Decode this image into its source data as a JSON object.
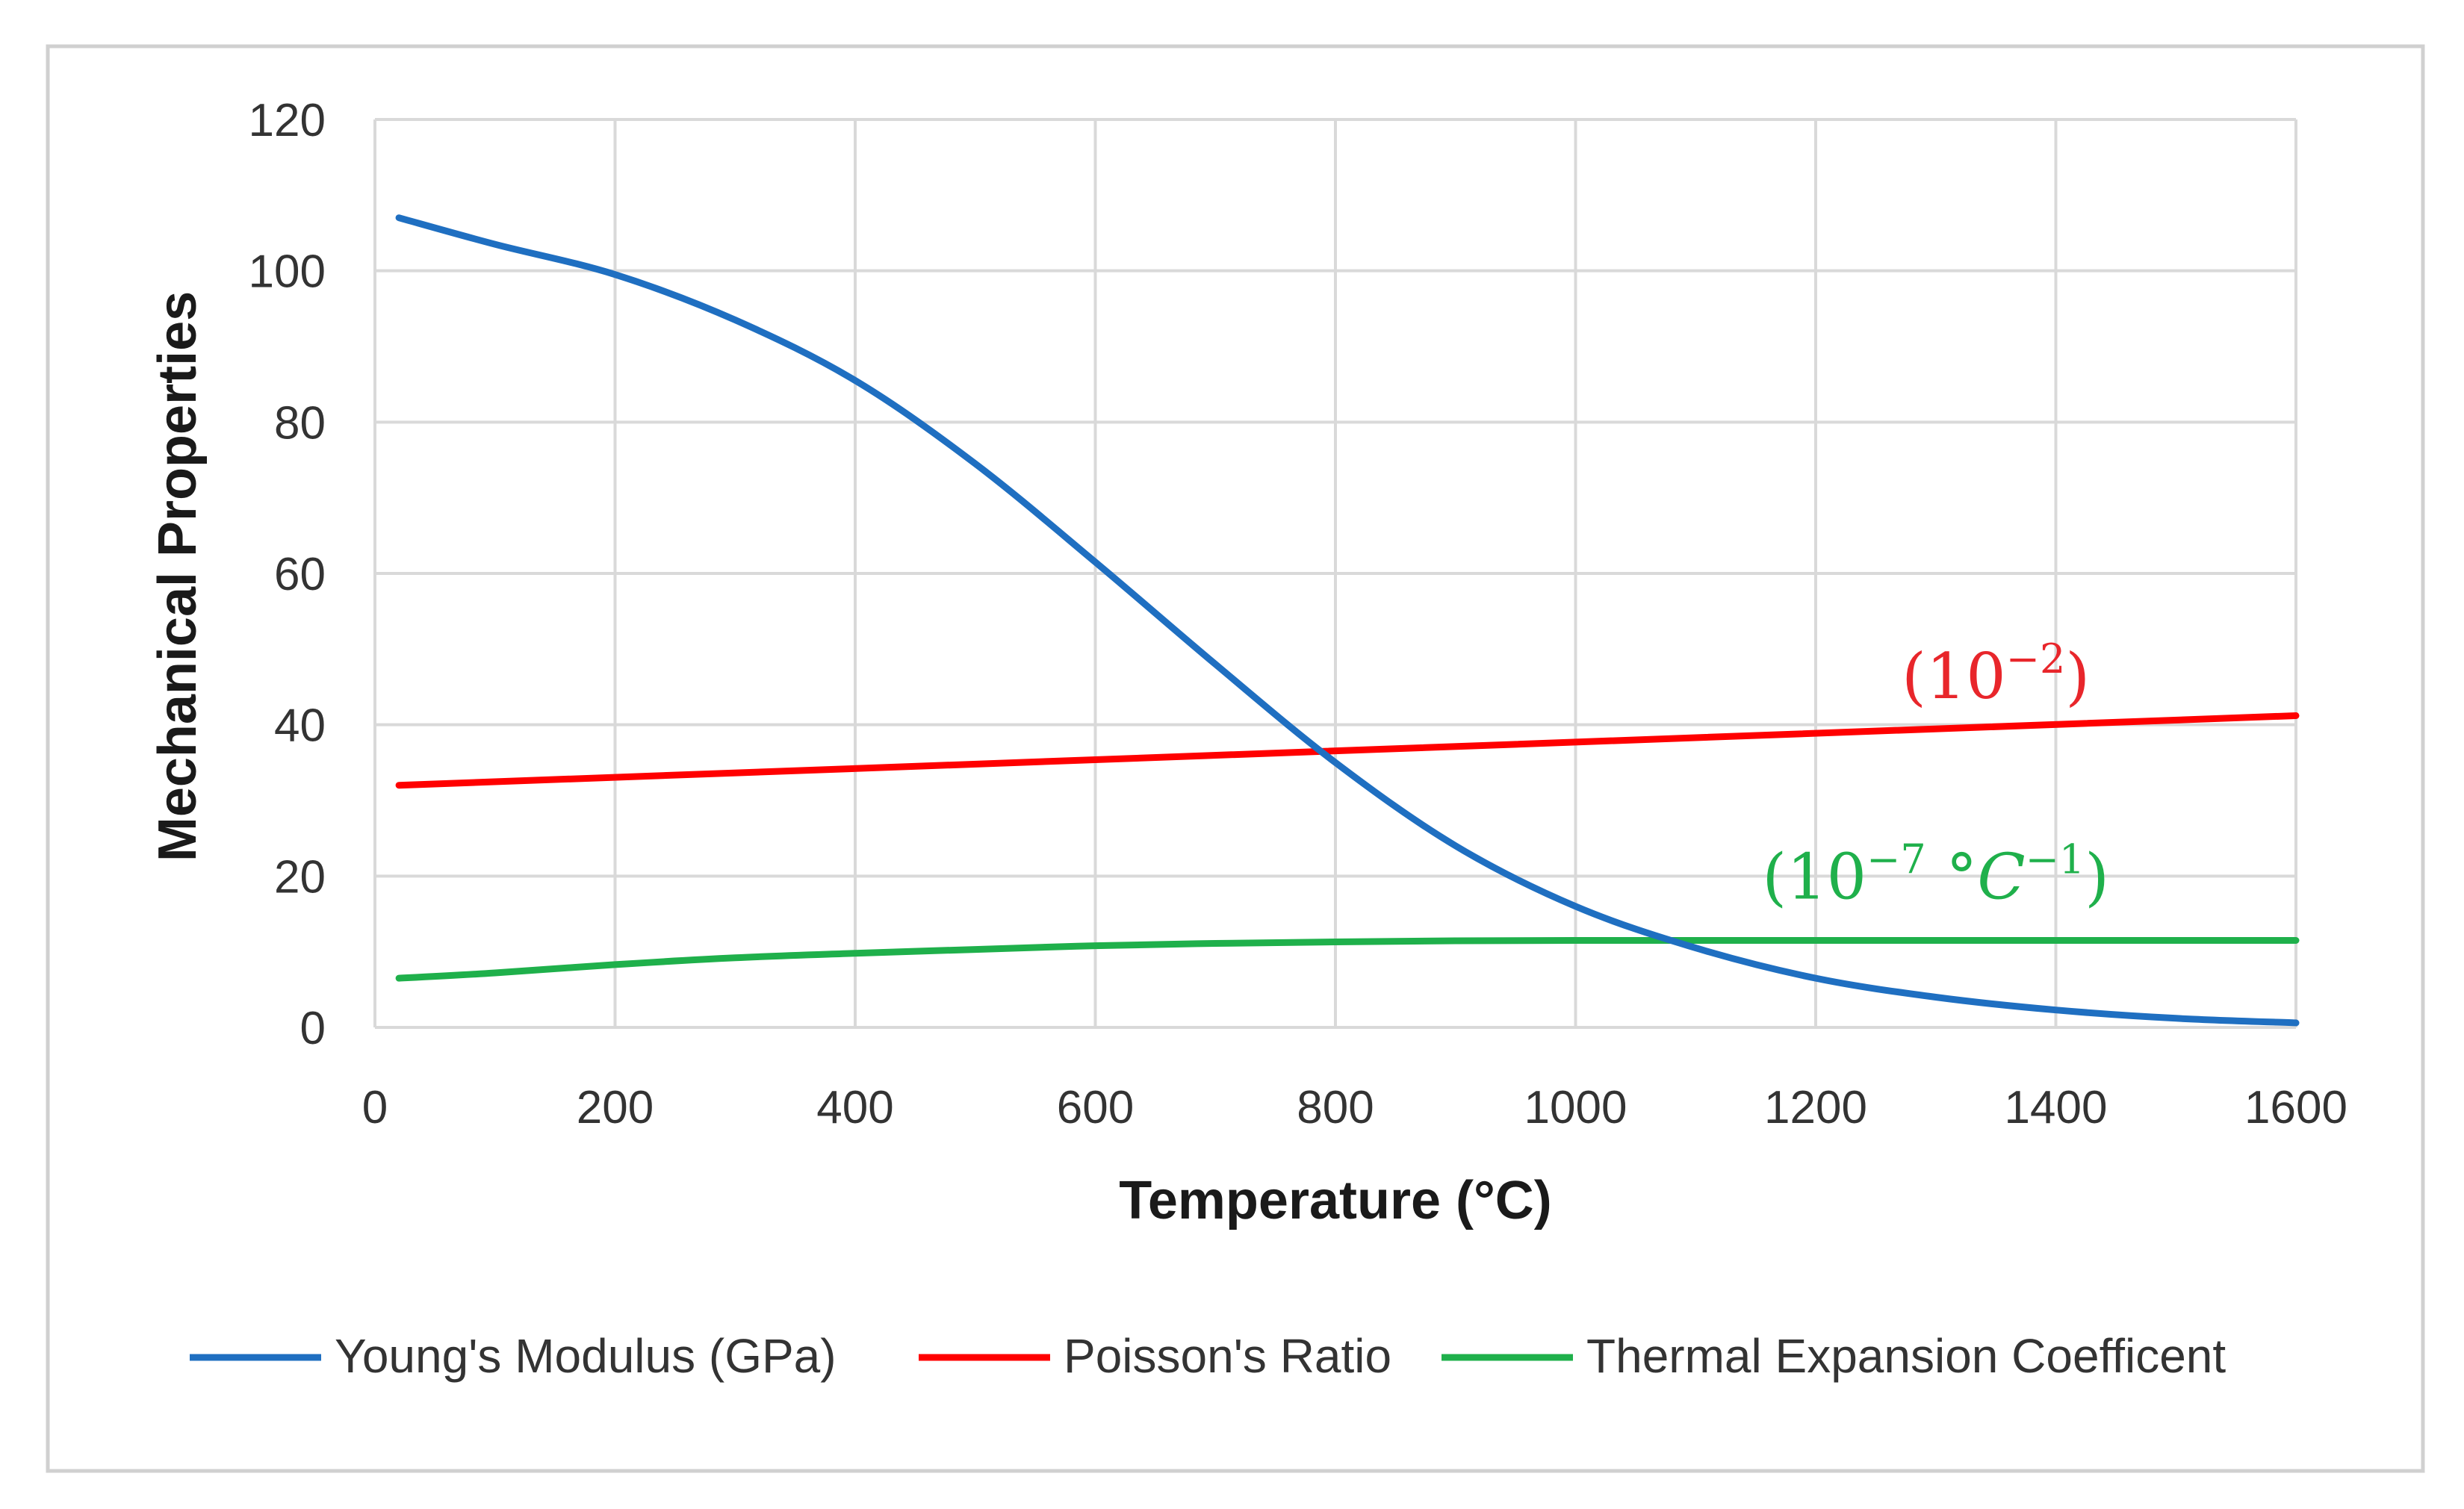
{
  "chart_data": {
    "type": "line",
    "title": "",
    "xlabel": "Temperature (°C)",
    "ylabel": "Mechanical Properties",
    "xlim": [
      0,
      1600
    ],
    "ylim": [
      0,
      120
    ],
    "xticks": [
      0,
      200,
      400,
      600,
      800,
      1000,
      1200,
      1400,
      1600
    ],
    "yticks": [
      0,
      20,
      40,
      60,
      80,
      100,
      120
    ],
    "grid": true,
    "legend_position": "bottom",
    "series": [
      {
        "name": "Young's Modulus (GPa)",
        "color": "#1f6fc1",
        "x": [
          20,
          100,
          200,
          300,
          400,
          500,
          600,
          700,
          800,
          900,
          1000,
          1100,
          1200,
          1300,
          1400,
          1500,
          1600
        ],
        "y": [
          107,
          103.5,
          99.5,
          93.5,
          85.5,
          74.5,
          61.5,
          48,
          35,
          24,
          16,
          10.5,
          6.5,
          4,
          2.3,
          1.2,
          0.6
        ]
      },
      {
        "name": "Poisson's Ratio",
        "color": "#ff0000",
        "x": [
          20,
          1600
        ],
        "y": [
          32,
          41.2
        ]
      },
      {
        "name": "Thermal Expansion Coefficent",
        "color": "#1fb04b",
        "x": [
          20,
          100,
          200,
          300,
          400,
          500,
          600,
          700,
          800,
          900,
          1000,
          1100,
          1200,
          1300,
          1400,
          1500,
          1600
        ],
        "y": [
          6.5,
          7.2,
          8.3,
          9.2,
          9.8,
          10.3,
          10.8,
          11.1,
          11.3,
          11.45,
          11.5,
          11.5,
          11.5,
          11.5,
          11.5,
          11.5,
          11.5
        ]
      }
    ],
    "annotations": [
      {
        "base": "(10",
        "exp": "−2",
        "tail": ")",
        "color": "#e8262b",
        "x": 1350,
        "y": 43.5
      },
      {
        "base": "(10",
        "exp": "−7",
        "mid": " °",
        "italic": "C",
        "exp2": "−1",
        "tail": ")",
        "color": "#1fb04b",
        "x": 1300,
        "y": 17
      }
    ]
  }
}
